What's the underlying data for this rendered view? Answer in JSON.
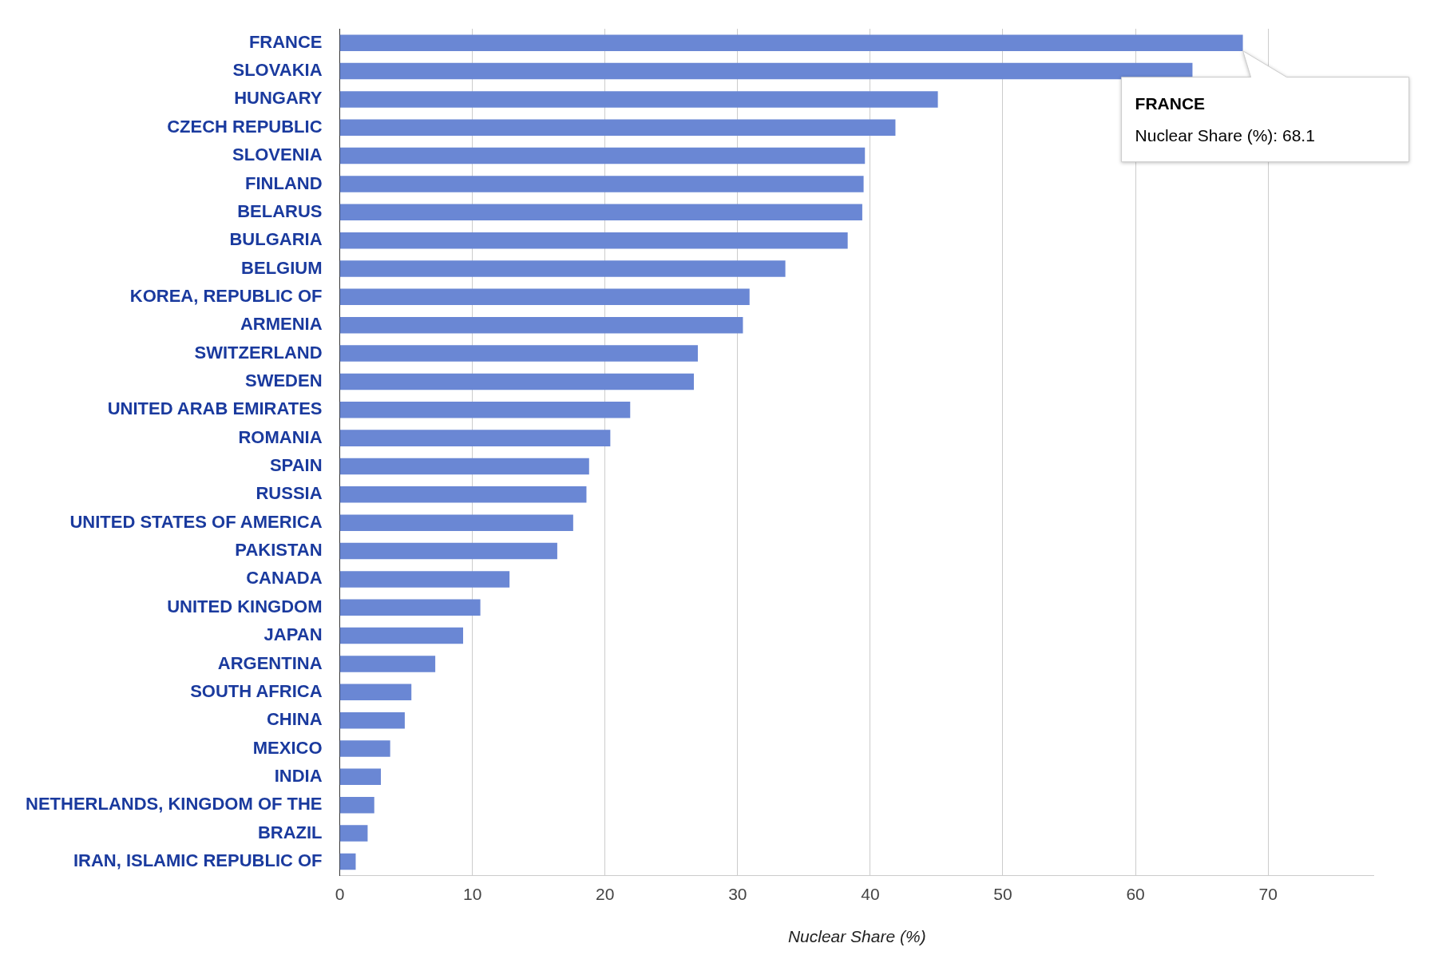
{
  "chart_data": {
    "type": "bar",
    "orientation": "horizontal",
    "xlabel": "Nuclear Share (%)",
    "categories": [
      "FRANCE",
      "SLOVAKIA",
      "HUNGARY",
      "CZECH REPUBLIC",
      "SLOVENIA",
      "FINLAND",
      "BELARUS",
      "BULGARIA",
      "BELGIUM",
      "KOREA, REPUBLIC OF",
      "ARMENIA",
      "SWITZERLAND",
      "SWEDEN",
      "UNITED ARAB EMIRATES",
      "ROMANIA",
      "SPAIN",
      "RUSSIA",
      "UNITED STATES OF AMERICA",
      "PAKISTAN",
      "CANADA",
      "UNITED KINGDOM",
      "JAPAN",
      "ARGENTINA",
      "SOUTH AFRICA",
      "CHINA",
      "MEXICO",
      "INDIA",
      "NETHERLANDS, KINGDOM OF THE",
      "BRAZIL",
      "IRAN, ISLAMIC REPUBLIC OF"
    ],
    "values": [
      68.1,
      64.3,
      45.1,
      41.9,
      39.6,
      39.5,
      39.4,
      38.3,
      33.6,
      30.9,
      30.4,
      27.0,
      26.7,
      21.9,
      20.4,
      18.8,
      18.6,
      17.6,
      16.4,
      12.8,
      10.6,
      9.3,
      7.2,
      5.4,
      4.9,
      3.8,
      3.1,
      2.6,
      2.1,
      1.2
    ],
    "color": "#6a87d4",
    "xlim": [
      0,
      78
    ],
    "xticks": [
      0,
      10,
      20,
      30,
      40,
      50,
      60,
      70
    ],
    "grid": "x",
    "legend": false,
    "annotations": [
      "FRANCE",
      "Nuclear Share (%): 68.1"
    ]
  }
}
